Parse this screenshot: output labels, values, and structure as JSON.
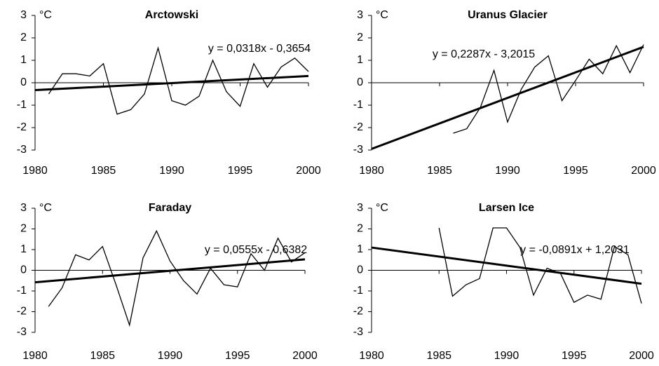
{
  "chart_data": [
    {
      "type": "line",
      "title": "Arctowski",
      "y_label": "°C",
      "annotation": "y = 0,0318x - 0,3654",
      "xlim": [
        1980,
        2000
      ],
      "xticks": [
        1980,
        1985,
        1990,
        1995,
        2000
      ],
      "ylim": [
        -3,
        3
      ],
      "yticks": [
        -3,
        -2,
        -1,
        0,
        1,
        2,
        3
      ],
      "series": [
        {
          "color": "#000000",
          "x": [
            1981,
            1982,
            1983,
            1984,
            1985,
            1986,
            1987,
            1988,
            1989,
            1990,
            1991,
            1992,
            1993,
            1994,
            1995,
            1996,
            1997,
            1998,
            1999,
            2000
          ],
          "values": [
            -0.5,
            0.4,
            0.4,
            0.3,
            0.85,
            -1.4,
            -1.2,
            -0.5,
            1.55,
            -0.8,
            -1.0,
            -0.6,
            1.0,
            -0.4,
            -1.05,
            0.85,
            -0.2,
            0.7,
            1.1,
            0.5
          ]
        },
        {
          "color": "#000000",
          "x": [
            1980,
            2000
          ],
          "values": [
            -0.33,
            0.3
          ]
        }
      ]
    },
    {
      "type": "line",
      "title": "Uranus Glacier",
      "y_label": "°C",
      "annotation": "y = 0,2287x - 3,2015",
      "xlim": [
        1980,
        2000
      ],
      "xticks": [
        1980,
        1985,
        1990,
        1995,
        2000
      ],
      "ylim": [
        -3,
        3
      ],
      "yticks": [
        -3,
        -2,
        -1,
        0,
        1,
        2,
        3
      ],
      "series": [
        {
          "color": "#000000",
          "x": [
            1986,
            1987,
            1988,
            1989,
            1990,
            1991,
            1992,
            1993,
            1994,
            1995,
            1996,
            1997,
            1998,
            1999,
            2000
          ],
          "values": [
            -2.25,
            -2.05,
            -1.1,
            0.55,
            -1.75,
            -0.3,
            0.7,
            1.2,
            -0.8,
            0.1,
            1.05,
            0.4,
            1.65,
            0.45,
            1.7
          ]
        },
        {
          "color": "#000000",
          "x": [
            1980,
            2000
          ],
          "values": [
            -2.95,
            1.6
          ]
        }
      ]
    },
    {
      "type": "line",
      "title": "Faraday",
      "y_label": "°C",
      "annotation": "y = 0,0555x - 0,6382",
      "xlim": [
        1980,
        2000
      ],
      "xticks": [
        1980,
        1985,
        1990,
        1995,
        2000
      ],
      "ylim": [
        -3,
        3
      ],
      "yticks": [
        -3,
        -2,
        -1,
        0,
        1,
        2,
        3
      ],
      "series": [
        {
          "color": "#000000",
          "x": [
            1981,
            1982,
            1983,
            1984,
            1985,
            1986,
            1987,
            1988,
            1989,
            1990,
            1991,
            1992,
            1993,
            1994,
            1995,
            1996,
            1997,
            1998,
            1999,
            2000
          ],
          "values": [
            -1.75,
            -0.85,
            0.75,
            0.5,
            1.15,
            -0.7,
            -2.65,
            0.6,
            1.9,
            0.45,
            -0.5,
            -1.15,
            0.1,
            -0.7,
            -0.8,
            0.8,
            0.0,
            1.55,
            0.4,
            0.85
          ]
        },
        {
          "color": "#000000",
          "x": [
            1980,
            2000
          ],
          "values": [
            -0.58,
            0.53
          ]
        }
      ]
    },
    {
      "type": "line",
      "title": "Larsen Ice",
      "y_label": "°C",
      "annotation": "y = -0,0891x + 1,2031",
      "xlim": [
        1980,
        2000
      ],
      "xticks": [
        1980,
        1985,
        1990,
        1995,
        2000
      ],
      "ylim": [
        -3,
        3
      ],
      "yticks": [
        -3,
        -2,
        -1,
        0,
        1,
        2,
        3
      ],
      "series": [
        {
          "color": "#000000",
          "x": [
            1985,
            1986,
            1987,
            1988,
            1989,
            1990,
            1991,
            1992,
            1993,
            1994,
            1995,
            1996,
            1997,
            1998,
            1999,
            2000
          ],
          "values": [
            2.05,
            -1.25,
            -0.7,
            -0.4,
            2.05,
            2.05,
            1.1,
            -1.2,
            0.1,
            -0.15,
            -1.55,
            -1.2,
            -1.4,
            1.15,
            0.75,
            -1.6
          ]
        },
        {
          "color": "#000000",
          "x": [
            1980,
            2000
          ],
          "values": [
            1.1,
            -0.65
          ]
        }
      ]
    }
  ]
}
